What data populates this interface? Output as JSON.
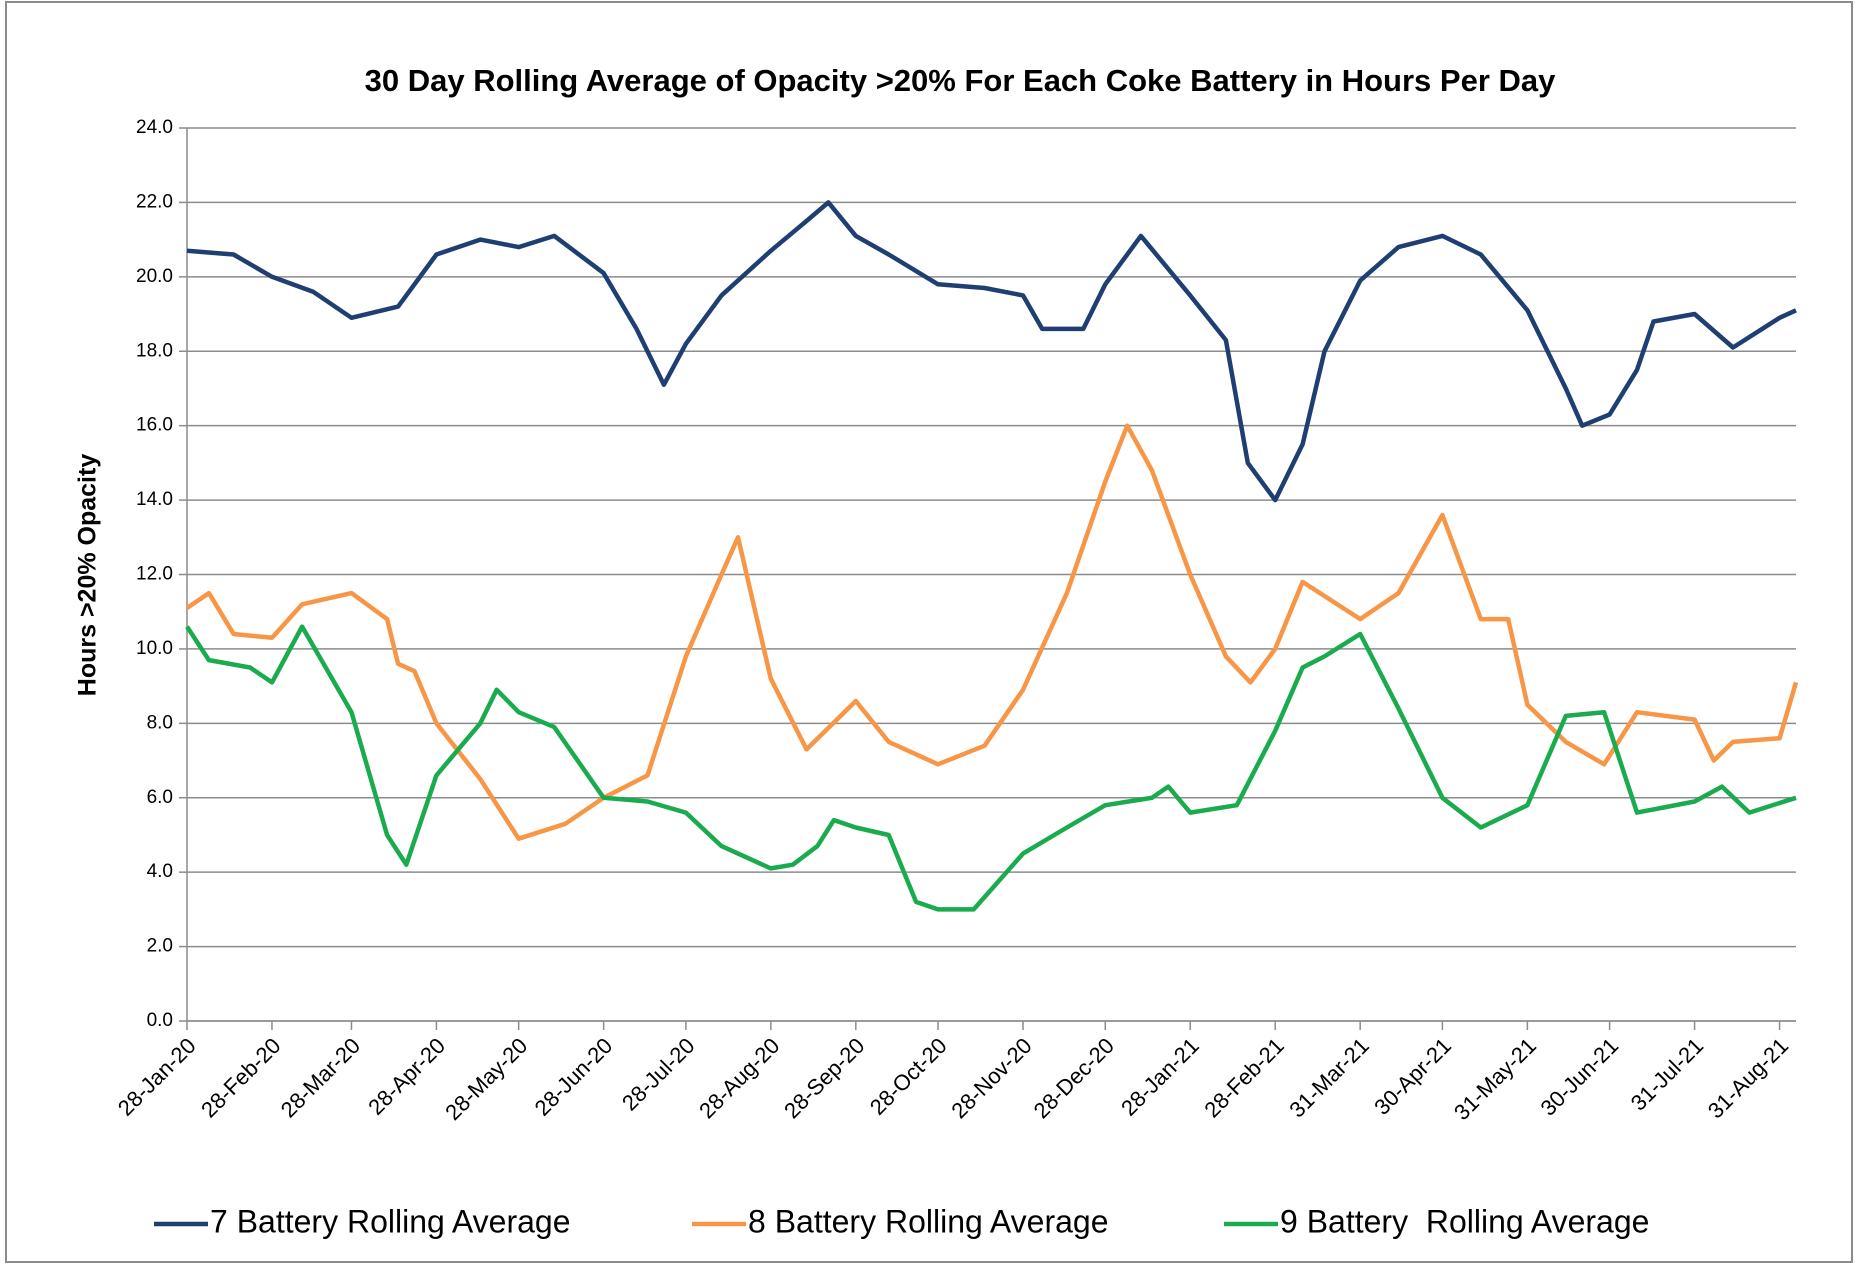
{
  "chart_data": {
    "type": "line",
    "title": "30 Day Rolling Average of Opacity >20% For Each Coke Battery in Hours Per Day",
    "y_label": "Hours >20% Opacity",
    "xlim": [
      "2020-01-28",
      "2021-09-06"
    ],
    "xticks": [
      {
        "value": "2020-01-28",
        "label": "28-Jan-20"
      },
      {
        "value": "2020-02-28",
        "label": "28-Feb-20"
      },
      {
        "value": "2020-03-28",
        "label": "28-Mar-20"
      },
      {
        "value": "2020-04-28",
        "label": "28-Apr-20"
      },
      {
        "value": "2020-05-28",
        "label": "28-May-20"
      },
      {
        "value": "2020-06-28",
        "label": "28-Jun-20"
      },
      {
        "value": "2020-07-28",
        "label": "28-Jul-20"
      },
      {
        "value": "2020-08-28",
        "label": "28-Aug-20"
      },
      {
        "value": "2020-09-28",
        "label": "28-Sep-20"
      },
      {
        "value": "2020-10-28",
        "label": "28-Oct-20"
      },
      {
        "value": "2020-11-28",
        "label": "28-Nov-20"
      },
      {
        "value": "2020-12-28",
        "label": "28-Dec-20"
      },
      {
        "value": "2021-01-28",
        "label": "28-Jan-21"
      },
      {
        "value": "2021-02-28",
        "label": "28-Feb-21"
      },
      {
        "value": "2021-03-31",
        "label": "31-Mar-21"
      },
      {
        "value": "2021-04-30",
        "label": "30-Apr-21"
      },
      {
        "value": "2021-05-31",
        "label": "31-May-21"
      },
      {
        "value": "2021-06-30",
        "label": "30-Jun-21"
      },
      {
        "value": "2021-07-31",
        "label": "31-Jul-21"
      },
      {
        "value": "2021-08-31",
        "label": "31-Aug-21"
      }
    ],
    "ylim": [
      0,
      24
    ],
    "yticks": [
      {
        "value": 0,
        "label": "0.0"
      },
      {
        "value": 2,
        "label": "2.0"
      },
      {
        "value": 4,
        "label": "4.0"
      },
      {
        "value": 6,
        "label": "6.0"
      },
      {
        "value": 8,
        "label": "8.0"
      },
      {
        "value": 10,
        "label": "10.0"
      },
      {
        "value": 12,
        "label": "12.0"
      },
      {
        "value": 14,
        "label": "14.0"
      },
      {
        "value": 16,
        "label": "16.0"
      },
      {
        "value": 18,
        "label": "18.0"
      },
      {
        "value": 20,
        "label": "20.0"
      },
      {
        "value": 22,
        "label": "22.0"
      },
      {
        "value": 24,
        "label": "24.0"
      }
    ],
    "grid": true,
    "legend": "bottom",
    "series": [
      {
        "name": "7 Battery Rolling Average",
        "color": "#1f3f73",
        "x": [
          "2020-01-28",
          "2020-02-14",
          "2020-02-28",
          "2020-03-14",
          "2020-03-28",
          "2020-04-14",
          "2020-04-28",
          "2020-05-14",
          "2020-05-28",
          "2020-06-10",
          "2020-06-28",
          "2020-07-10",
          "2020-07-20",
          "2020-07-28",
          "2020-08-10",
          "2020-08-28",
          "2020-09-10",
          "2020-09-18",
          "2020-09-28",
          "2020-10-10",
          "2020-10-28",
          "2020-11-14",
          "2020-11-28",
          "2020-12-05",
          "2020-12-20",
          "2020-12-28",
          "2021-01-10",
          "2021-01-28",
          "2021-02-10",
          "2021-02-18",
          "2021-02-28",
          "2021-03-10",
          "2021-03-18",
          "2021-03-31",
          "2021-04-14",
          "2021-04-30",
          "2021-05-14",
          "2021-05-31",
          "2021-06-14",
          "2021-06-20",
          "2021-06-30",
          "2021-07-10",
          "2021-07-16",
          "2021-07-31",
          "2021-08-14",
          "2021-08-31",
          "2021-09-06"
        ],
        "values": [
          20.7,
          20.6,
          20.0,
          19.6,
          18.9,
          19.2,
          20.6,
          21.0,
          20.8,
          21.1,
          20.1,
          18.6,
          17.1,
          18.2,
          19.5,
          20.7,
          21.5,
          22.0,
          21.1,
          20.6,
          19.8,
          19.7,
          19.5,
          18.6,
          18.6,
          19.8,
          21.1,
          19.5,
          18.3,
          15.0,
          14.0,
          15.5,
          18.0,
          19.9,
          20.8,
          21.1,
          20.6,
          19.1,
          17.0,
          16.0,
          16.3,
          17.5,
          18.8,
          19.0,
          18.1,
          18.9,
          19.1
        ]
      },
      {
        "name": "8 Battery Rolling Average",
        "color": "#f79646",
        "x": [
          "2020-01-28",
          "2020-02-05",
          "2020-02-14",
          "2020-02-28",
          "2020-03-10",
          "2020-03-28",
          "2020-04-10",
          "2020-04-14",
          "2020-04-20",
          "2020-04-28",
          "2020-05-14",
          "2020-05-28",
          "2020-06-14",
          "2020-06-28",
          "2020-07-14",
          "2020-07-28",
          "2020-08-10",
          "2020-08-16",
          "2020-08-28",
          "2020-09-10",
          "2020-09-28",
          "2020-10-10",
          "2020-10-28",
          "2020-11-14",
          "2020-11-28",
          "2020-12-14",
          "2020-12-28",
          "2021-01-05",
          "2021-01-14",
          "2021-01-28",
          "2021-02-10",
          "2021-02-19",
          "2021-02-28",
          "2021-03-10",
          "2021-03-31",
          "2021-04-14",
          "2021-04-30",
          "2021-05-14",
          "2021-05-24",
          "2021-05-31",
          "2021-06-14",
          "2021-06-28",
          "2021-07-10",
          "2021-07-31",
          "2021-08-07",
          "2021-08-14",
          "2021-08-31",
          "2021-09-06"
        ],
        "values": [
          11.1,
          11.5,
          10.4,
          10.3,
          11.2,
          11.5,
          10.8,
          9.6,
          9.4,
          8.0,
          6.5,
          4.9,
          5.3,
          6.0,
          6.6,
          9.8,
          12.0,
          13.0,
          9.2,
          7.3,
          8.6,
          7.5,
          6.9,
          7.4,
          8.9,
          11.5,
          14.5,
          16.0,
          14.8,
          12.0,
          9.8,
          9.1,
          10.0,
          11.8,
          10.8,
          11.5,
          13.6,
          10.8,
          10.8,
          8.5,
          7.5,
          6.9,
          8.3,
          8.1,
          7.0,
          7.5,
          7.6,
          9.1
        ]
      },
      {
        "name": "9 Battery  Rolling Average",
        "color": "#1aab4f",
        "x": [
          "2020-01-28",
          "2020-02-05",
          "2020-02-20",
          "2020-02-28",
          "2020-03-10",
          "2020-03-28",
          "2020-04-10",
          "2020-04-17",
          "2020-04-28",
          "2020-05-14",
          "2020-05-20",
          "2020-05-28",
          "2020-06-10",
          "2020-06-28",
          "2020-07-14",
          "2020-07-28",
          "2020-08-10",
          "2020-08-28",
          "2020-09-05",
          "2020-09-14",
          "2020-09-20",
          "2020-09-28",
          "2020-10-10",
          "2020-10-20",
          "2020-10-28",
          "2020-11-10",
          "2020-11-28",
          "2020-12-14",
          "2020-12-28",
          "2021-01-14",
          "2021-01-20",
          "2021-01-28",
          "2021-02-14",
          "2021-02-28",
          "2021-03-10",
          "2021-03-18",
          "2021-03-31",
          "2021-04-14",
          "2021-04-30",
          "2021-05-14",
          "2021-05-31",
          "2021-06-14",
          "2021-06-28",
          "2021-07-10",
          "2021-07-31",
          "2021-08-10",
          "2021-08-20",
          "2021-09-06"
        ],
        "values": [
          10.6,
          9.7,
          9.5,
          9.1,
          10.6,
          8.3,
          5.0,
          4.2,
          6.6,
          8.0,
          8.9,
          8.3,
          7.9,
          6.0,
          5.9,
          5.6,
          4.7,
          4.1,
          4.2,
          4.7,
          5.4,
          5.2,
          5.0,
          3.2,
          3.0,
          3.0,
          4.5,
          5.2,
          5.8,
          6.0,
          6.3,
          5.6,
          5.8,
          7.8,
          9.5,
          9.8,
          10.4,
          8.4,
          6.0,
          5.2,
          5.8,
          8.2,
          8.3,
          5.6,
          5.9,
          6.3,
          5.6,
          6.0
        ]
      }
    ]
  }
}
